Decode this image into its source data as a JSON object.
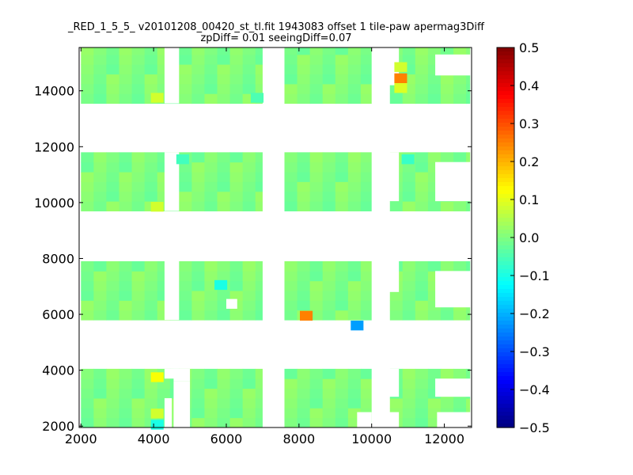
{
  "chart_data": {
    "type": "heatmap",
    "title_line1": "_RED_1_5_5_ v20101208_00420_st_tl.fit 1943083 offset 1 tile-paw apermag3Diff",
    "title_line2": "zpDiff= 0.01 seeingDiff=0.07",
    "xlim": [
      1950,
      12750
    ],
    "ylim": [
      1950,
      15550
    ],
    "x_ticks": [
      2000,
      4000,
      6000,
      8000,
      10000,
      12000
    ],
    "x_tick_labels": [
      "2000",
      "4000",
      "6000",
      "8000",
      "10000",
      "12000"
    ],
    "y_ticks": [
      2000,
      4000,
      6000,
      8000,
      10000,
      12000,
      14000
    ],
    "y_tick_labels": [
      "2000",
      "4000",
      "6000",
      "8000",
      "10000",
      "12000",
      "14000"
    ],
    "colorbar": {
      "range": [
        -0.5,
        0.5
      ],
      "ticks": [
        0.5,
        0.4,
        0.3,
        0.2,
        0.1,
        0.0,
        -0.1,
        -0.2,
        -0.3,
        -0.4,
        -0.5
      ],
      "tick_labels": [
        "0.5",
        "0.4",
        "0.3",
        "0.2",
        "0.1",
        "0.0",
        "−0.1",
        "−0.2",
        "−0.3",
        "−0.4",
        "−0.5"
      ],
      "colormap": "jet"
    },
    "cell_size": 350,
    "baseline_value": 0.0,
    "columns_x_ranges": [
      [
        2000,
        4700
      ],
      [
        4700,
        7000
      ],
      [
        7600,
        10000
      ],
      [
        10500,
        12700
      ]
    ],
    "rows_y_ranges": [
      [
        1950,
        4050
      ],
      [
        5800,
        7900
      ],
      [
        9700,
        11800
      ],
      [
        13550,
        15550
      ]
    ],
    "missing_blocks": [
      {
        "x": [
          4550,
          5000
        ],
        "y": [
          1950,
          3600
        ]
      },
      {
        "x": [
          4550,
          5000
        ],
        "y": [
          3600,
          4050
        ]
      },
      {
        "x": [
          4300,
          4700
        ],
        "y": [
          3700,
          4050
        ]
      },
      {
        "x": [
          4300,
          4700
        ],
        "y": [
          5800,
          7900
        ]
      },
      {
        "x": [
          4300,
          4700
        ],
        "y": [
          9700,
          11800
        ]
      },
      {
        "x": [
          4300,
          4700
        ],
        "y": [
          13550,
          15550
        ]
      },
      {
        "x": [
          7000,
          7600
        ],
        "y": [
          1950,
          15550
        ]
      },
      {
        "x": [
          10000,
          10500
        ],
        "y": [
          1950,
          15550
        ]
      },
      {
        "x": [
          4300,
          4500
        ],
        "y": [
          1950,
          3000
        ]
      },
      {
        "x": [
          9600,
          10000
        ],
        "y": [
          1950,
          2500
        ]
      },
      {
        "x": [
          10400,
          10750
        ],
        "y": [
          1950,
          2500
        ]
      },
      {
        "x": [
          11800,
          12750
        ],
        "y": [
          1950,
          2500
        ]
      },
      {
        "x": [
          10400,
          10750
        ],
        "y": [
          3050,
          4050
        ]
      },
      {
        "x": [
          11750,
          12750
        ],
        "y": [
          3050,
          3700
        ]
      },
      {
        "x": [
          10400,
          10750
        ],
        "y": [
          6800,
          7900
        ]
      },
      {
        "x": [
          11750,
          12750
        ],
        "y": [
          6250,
          7550
        ]
      },
      {
        "x": [
          10400,
          10750
        ],
        "y": [
          10050,
          11800
        ]
      },
      {
        "x": [
          11750,
          12750
        ],
        "y": [
          10050,
          11450
        ]
      },
      {
        "x": [
          10400,
          10750
        ],
        "y": [
          14200,
          15550
        ]
      },
      {
        "x": [
          11750,
          12750
        ],
        "y": [
          14550,
          15300
        ]
      },
      {
        "x": [
          6000,
          6300
        ],
        "y": [
          6200,
          6550
        ]
      }
    ],
    "highlight_cells": [
      {
        "x": 10800,
        "y": 14450,
        "value": 0.25
      },
      {
        "x": 10800,
        "y": 14850,
        "value": 0.08
      },
      {
        "x": 10800,
        "y": 14100,
        "value": 0.09
      },
      {
        "x": 8200,
        "y": 5950,
        "value": 0.25
      },
      {
        "x": 9600,
        "y": 5600,
        "value": -0.22
      },
      {
        "x": 4100,
        "y": 3750,
        "value": 0.12
      },
      {
        "x": 4100,
        "y": 2050,
        "value": -0.1
      },
      {
        "x": 4100,
        "y": 2450,
        "value": 0.08
      },
      {
        "x": 5850,
        "y": 7050,
        "value": -0.1
      },
      {
        "x": 4100,
        "y": 13750,
        "value": 0.08
      },
      {
        "x": 4100,
        "y": 9850,
        "value": 0.08
      },
      {
        "x": 11000,
        "y": 11550,
        "value": -0.07
      },
      {
        "x": 4800,
        "y": 11550,
        "value": -0.06
      },
      {
        "x": 6850,
        "y": 13750,
        "value": -0.05
      }
    ]
  }
}
